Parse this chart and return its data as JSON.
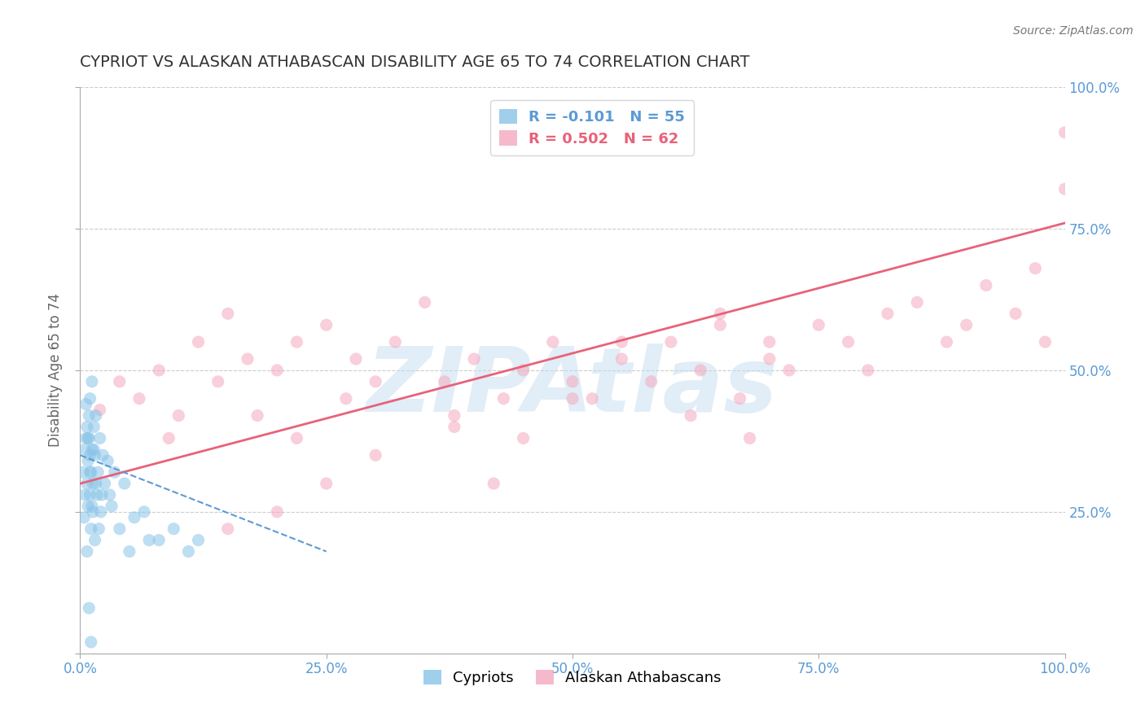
{
  "title": "CYPRIOT VS ALASKAN ATHABASCAN DISABILITY AGE 65 TO 74 CORRELATION CHART",
  "source_text": "Source: ZipAtlas.com",
  "ylabel": "Disability Age 65 to 74",
  "xlim": [
    0,
    100
  ],
  "ylim": [
    0,
    100
  ],
  "xtick_values": [
    0,
    25,
    50,
    75,
    100
  ],
  "xtick_labels": [
    "0.0%",
    "25.0%",
    "50.0%",
    "75.0%",
    "100.0%"
  ],
  "ytick_values": [
    0,
    25,
    50,
    75,
    100
  ],
  "ytick_labels": [
    "",
    "",
    "",
    "",
    ""
  ],
  "right_ytick_values": [
    25,
    50,
    75,
    100
  ],
  "right_ytick_labels": [
    "25.0%",
    "50.0%",
    "75.0%",
    "100.0%"
  ],
  "legend_r_labels": [
    "R = -0.101   N = 55",
    "R = 0.502   N = 62"
  ],
  "legend_labels": [
    "Cypriots",
    "Alaskan Athabascans"
  ],
  "watermark": "ZIPAtlas",
  "blue_color": "#89c4e8",
  "pink_color": "#f4a8be",
  "blue_line_color": "#5b9bd5",
  "pink_line_color": "#e8627a",
  "grid_color": "#cccccc",
  "background_color": "#ffffff",
  "title_color": "#333333",
  "axis_label_color": "#666666",
  "tick_color": "#5b9bd5",
  "marker_size": 10,
  "marker_alpha": 0.55,
  "cypriot_x": [
    0.3,
    0.5,
    0.5,
    0.6,
    0.7,
    0.7,
    0.8,
    0.8,
    0.9,
    0.9,
    1.0,
    1.0,
    1.0,
    1.1,
    1.1,
    1.2,
    1.2,
    1.3,
    1.3,
    1.4,
    1.5,
    1.5,
    1.6,
    1.7,
    1.8,
    2.0,
    2.1,
    2.3,
    2.5,
    3.0,
    3.5,
    4.0,
    5.0,
    6.5,
    8.0,
    9.5,
    11.0,
    12.0,
    0.4,
    0.6,
    0.8,
    1.0,
    1.2,
    1.4,
    1.6,
    1.9,
    2.2,
    2.8,
    3.2,
    4.5,
    5.5,
    7.0,
    0.7,
    0.9,
    1.1
  ],
  "cypriot_y": [
    32,
    36,
    28,
    38,
    30,
    40,
    34,
    26,
    38,
    42,
    35,
    28,
    45,
    32,
    22,
    36,
    48,
    30,
    25,
    40,
    35,
    20,
    42,
    28,
    32,
    38,
    25,
    35,
    30,
    28,
    32,
    22,
    18,
    25,
    20,
    22,
    18,
    20,
    24,
    44,
    38,
    32,
    26,
    36,
    30,
    22,
    28,
    34,
    26,
    30,
    24,
    20,
    18,
    8,
    2
  ],
  "athabascan_x": [
    2,
    4,
    6,
    8,
    9,
    10,
    12,
    14,
    15,
    17,
    18,
    20,
    22,
    22,
    25,
    27,
    28,
    30,
    32,
    35,
    37,
    38,
    40,
    43,
    45,
    48,
    50,
    52,
    55,
    58,
    60,
    62,
    63,
    65,
    67,
    68,
    70,
    72,
    75,
    78,
    80,
    82,
    85,
    88,
    90,
    92,
    95,
    97,
    98,
    100,
    100,
    65,
    70,
    45,
    50,
    55,
    38,
    42,
    30,
    25,
    20,
    15
  ],
  "athabascan_y": [
    43,
    48,
    45,
    50,
    38,
    42,
    55,
    48,
    60,
    52,
    42,
    50,
    55,
    38,
    58,
    45,
    52,
    48,
    55,
    62,
    48,
    40,
    52,
    45,
    50,
    55,
    48,
    45,
    52,
    48,
    55,
    42,
    50,
    58,
    45,
    38,
    52,
    50,
    58,
    55,
    50,
    60,
    62,
    55,
    58,
    65,
    60,
    68,
    55,
    92,
    82,
    60,
    55,
    38,
    45,
    55,
    42,
    30,
    35,
    30,
    25,
    22
  ],
  "pink_trendline_x": [
    0,
    100
  ],
  "pink_trendline_y": [
    30,
    76
  ],
  "blue_trendline_x": [
    0,
    25
  ],
  "blue_trendline_y": [
    35,
    18
  ]
}
